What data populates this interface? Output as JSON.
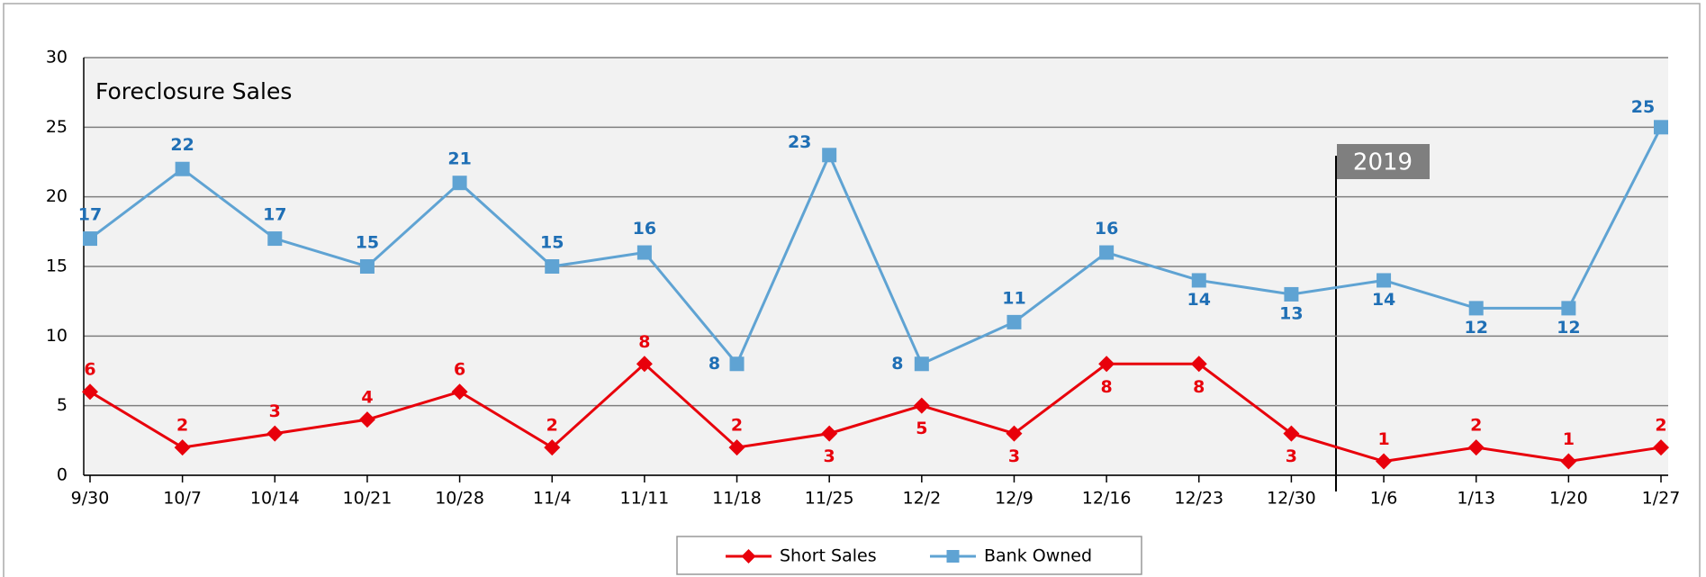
{
  "chart_data": {
    "type": "line",
    "title": "Foreclosure Sales",
    "categories": [
      "9/30",
      "10/7",
      "10/14",
      "10/21",
      "10/28",
      "11/4",
      "11/11",
      "11/18",
      "11/25",
      "12/2",
      "12/9",
      "12/16",
      "12/23",
      "12/30",
      "1/6",
      "1/13",
      "1/20",
      "1/27"
    ],
    "series": [
      {
        "name": "Short Sales",
        "color": "#e8000b",
        "values": [
          6,
          2,
          3,
          4,
          6,
          2,
          8,
          2,
          3,
          5,
          3,
          8,
          8,
          3,
          1,
          2,
          1,
          2
        ]
      },
      {
        "name": "Bank Owned",
        "color": "#5fa3d3",
        "values": [
          17,
          22,
          17,
          15,
          21,
          15,
          16,
          8,
          23,
          8,
          11,
          16,
          14,
          13,
          14,
          12,
          12,
          25
        ]
      }
    ],
    "ylim": [
      0,
      30
    ],
    "yticks": [
      0,
      5,
      10,
      15,
      20,
      25,
      30
    ],
    "grid": true,
    "annotations": [
      {
        "text": "2019"
      }
    ],
    "legend": "bottom"
  }
}
